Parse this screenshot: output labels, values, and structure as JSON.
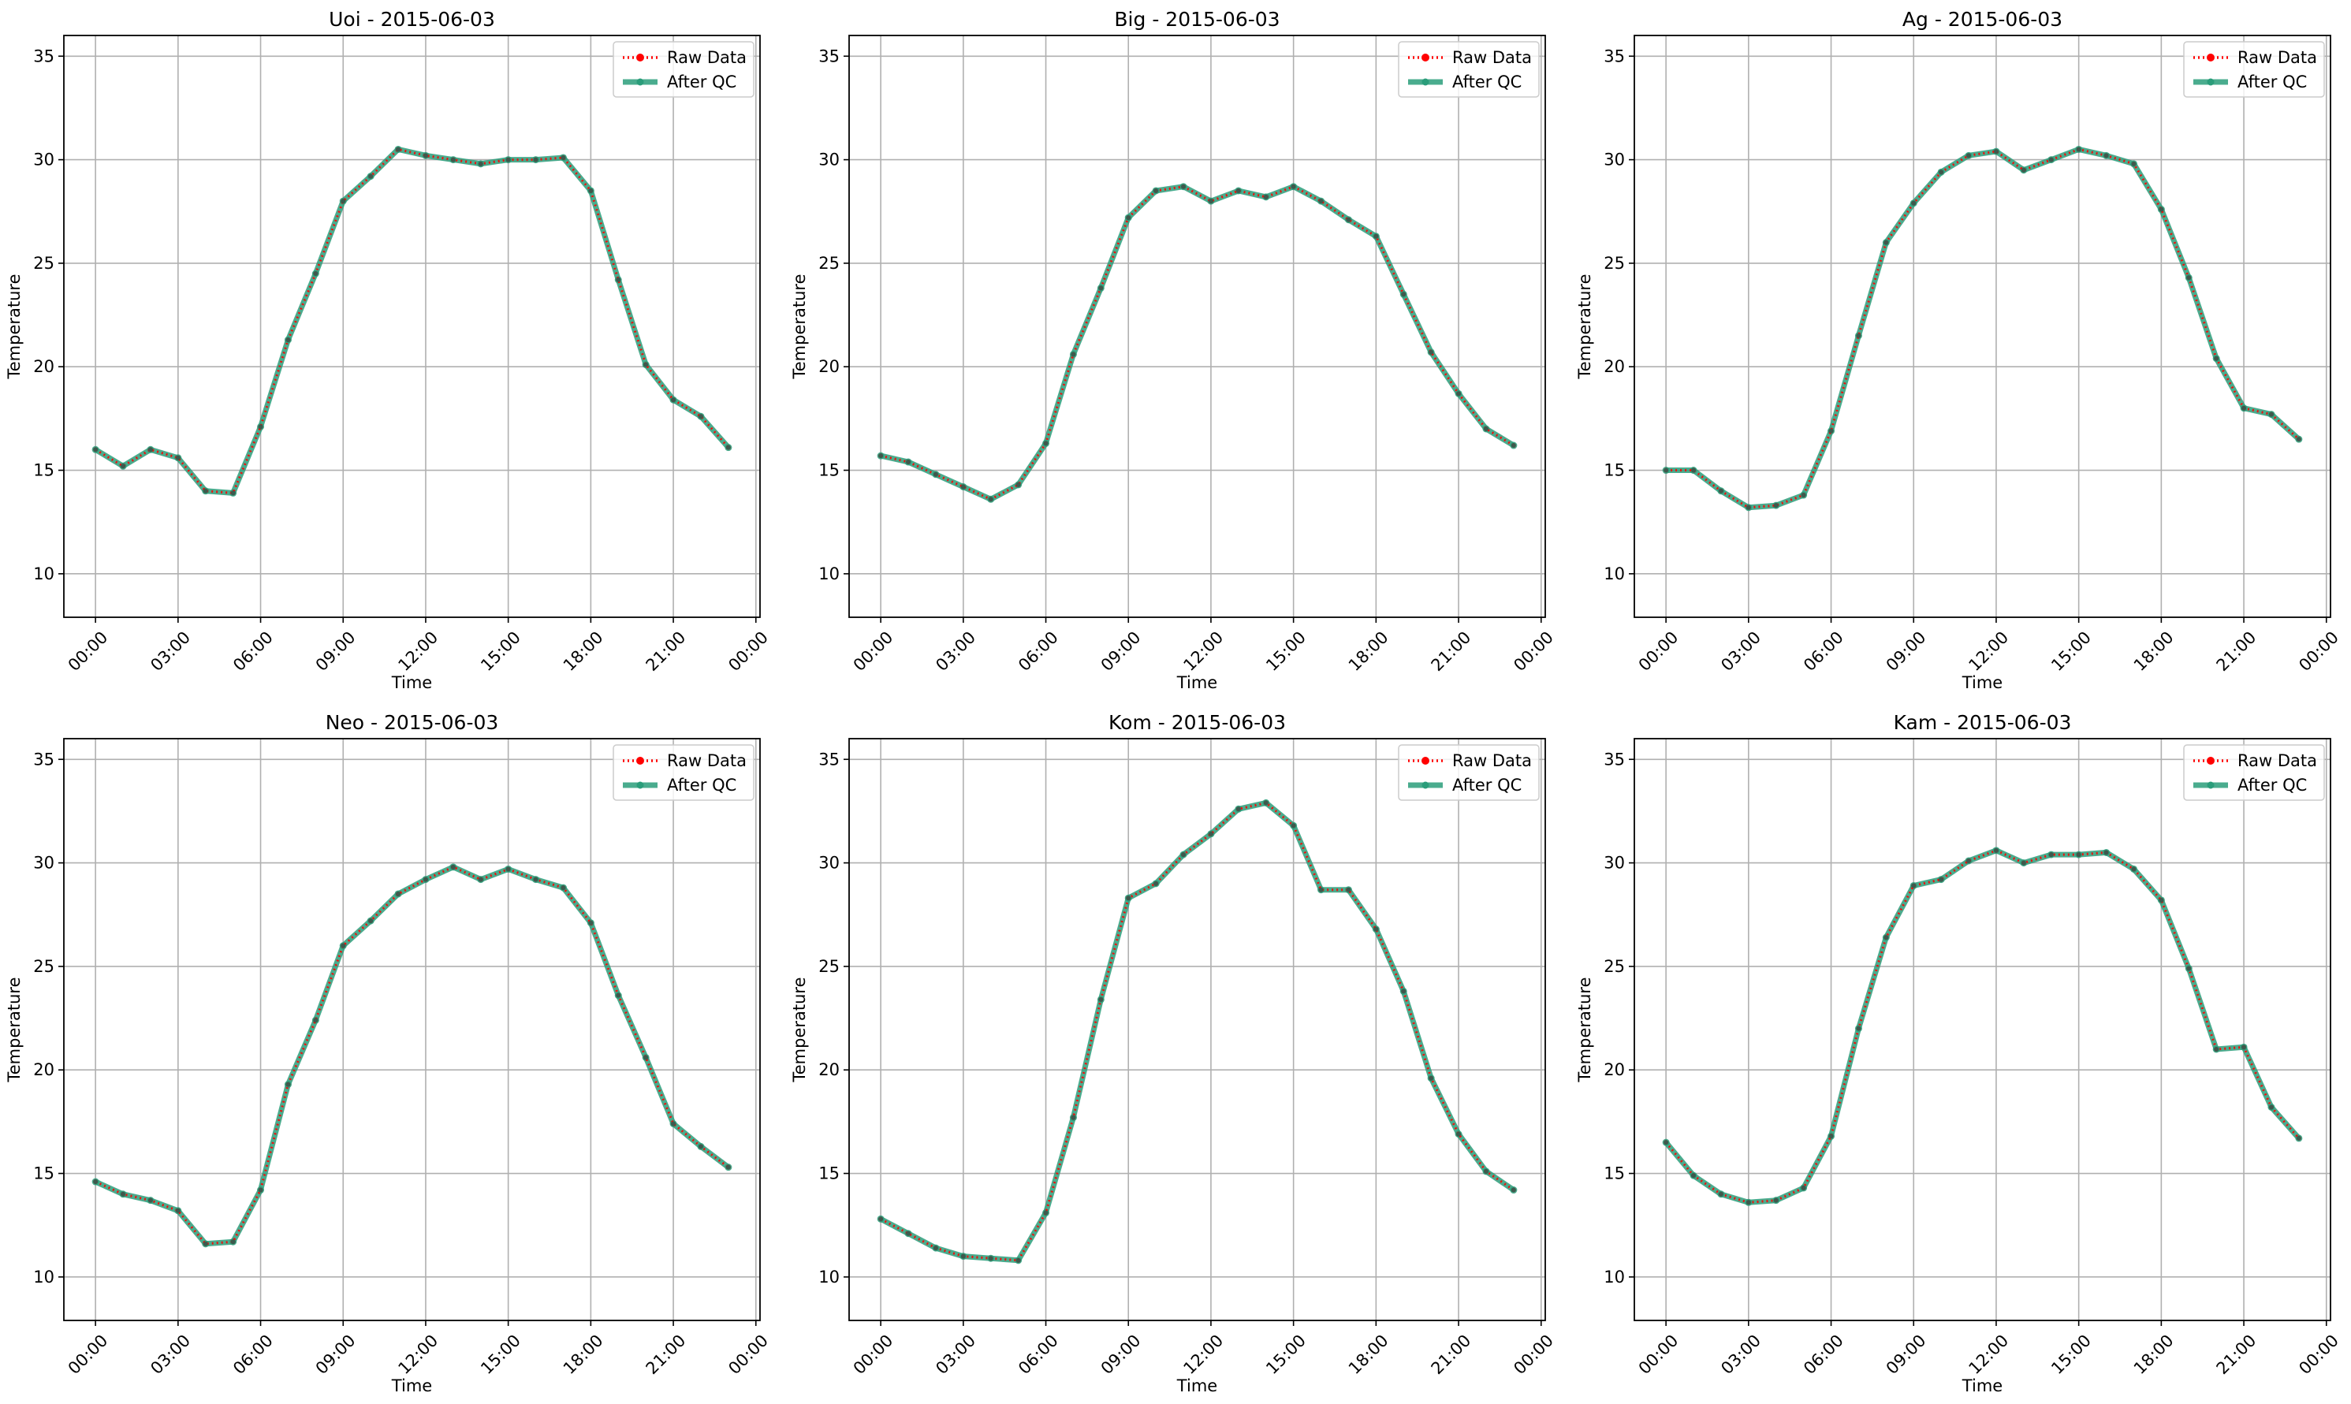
{
  "chart_data": [
    {
      "type": "line",
      "title": "Uoi - 2015-06-03",
      "xlabel": "Time",
      "ylabel": "Temperature",
      "xticks": [
        "00:00",
        "03:00",
        "06:00",
        "09:00",
        "12:00",
        "15:00",
        "18:00",
        "21:00",
        "00:00"
      ],
      "yticks": [
        10,
        15,
        20,
        25,
        30,
        35
      ],
      "ylim": [
        7.9,
        36.0
      ],
      "xlim_hours": [
        -1.15,
        24.15
      ],
      "grid": true,
      "legend_position": "top-right",
      "x_hours": [
        0,
        1,
        2,
        3,
        4,
        5,
        6,
        7,
        8,
        9,
        10,
        11,
        12,
        13,
        14,
        15,
        16,
        17,
        18,
        19,
        20,
        21,
        22,
        23
      ],
      "series": [
        {
          "name": "Raw Data",
          "color": "#ff0000",
          "style": "dotted",
          "marker": "o",
          "values": [
            16.0,
            15.2,
            16.0,
            15.6,
            14.0,
            13.9,
            17.1,
            21.3,
            24.5,
            28.0,
            29.2,
            30.5,
            30.2,
            30.0,
            29.8,
            30.0,
            30.0,
            30.1,
            28.5,
            24.2,
            20.1,
            18.4,
            17.6,
            16.1
          ]
        },
        {
          "name": "After QC",
          "color": "#2a9d7a",
          "style": "solid",
          "marker": "o",
          "values": [
            16.0,
            15.2,
            16.0,
            15.6,
            14.0,
            13.9,
            17.1,
            21.3,
            24.5,
            28.0,
            29.2,
            30.5,
            30.2,
            30.0,
            29.8,
            30.0,
            30.0,
            30.1,
            28.5,
            24.2,
            20.1,
            18.4,
            17.6,
            16.1
          ]
        }
      ]
    },
    {
      "type": "line",
      "title": "Big - 2015-06-03",
      "xlabel": "Time",
      "ylabel": "Temperature",
      "xticks": [
        "00:00",
        "03:00",
        "06:00",
        "09:00",
        "12:00",
        "15:00",
        "18:00",
        "21:00",
        "00:00"
      ],
      "yticks": [
        10,
        15,
        20,
        25,
        30,
        35
      ],
      "ylim": [
        7.9,
        36.0
      ],
      "xlim_hours": [
        -1.15,
        24.15
      ],
      "grid": true,
      "legend_position": "top-right",
      "x_hours": [
        0,
        1,
        2,
        3,
        4,
        5,
        6,
        7,
        8,
        9,
        10,
        11,
        12,
        13,
        14,
        15,
        16,
        17,
        18,
        19,
        20,
        21,
        22,
        23
      ],
      "series": [
        {
          "name": "Raw Data",
          "color": "#ff0000",
          "style": "dotted",
          "marker": "o",
          "values": [
            15.7,
            15.4,
            14.8,
            14.2,
            13.6,
            14.3,
            16.3,
            20.6,
            23.8,
            27.2,
            28.5,
            28.7,
            28.0,
            28.5,
            28.2,
            28.7,
            28.0,
            27.1,
            26.3,
            23.5,
            20.7,
            18.7,
            17.0,
            16.2
          ]
        },
        {
          "name": "After QC",
          "color": "#2a9d7a",
          "style": "solid",
          "marker": "o",
          "values": [
            15.7,
            15.4,
            14.8,
            14.2,
            13.6,
            14.3,
            16.3,
            20.6,
            23.8,
            27.2,
            28.5,
            28.7,
            28.0,
            28.5,
            28.2,
            28.7,
            28.0,
            27.1,
            26.3,
            23.5,
            20.7,
            18.7,
            17.0,
            16.2
          ]
        }
      ]
    },
    {
      "type": "line",
      "title": "Ag - 2015-06-03",
      "xlabel": "Time",
      "ylabel": "Temperature",
      "xticks": [
        "00:00",
        "03:00",
        "06:00",
        "09:00",
        "12:00",
        "15:00",
        "18:00",
        "21:00",
        "00:00"
      ],
      "yticks": [
        10,
        15,
        20,
        25,
        30,
        35
      ],
      "ylim": [
        7.9,
        36.0
      ],
      "xlim_hours": [
        -1.15,
        24.15
      ],
      "grid": true,
      "legend_position": "top-right",
      "x_hours": [
        0,
        1,
        2,
        3,
        4,
        5,
        6,
        7,
        8,
        9,
        10,
        11,
        12,
        13,
        14,
        15,
        16,
        17,
        18,
        19,
        20,
        21,
        22,
        23
      ],
      "series": [
        {
          "name": "Raw Data",
          "color": "#ff0000",
          "style": "dotted",
          "marker": "o",
          "values": [
            15.0,
            15.0,
            14.0,
            13.2,
            13.3,
            13.8,
            16.9,
            21.5,
            26.0,
            27.9,
            29.4,
            30.2,
            30.4,
            29.5,
            30.0,
            30.5,
            30.2,
            29.8,
            27.6,
            24.3,
            20.4,
            18.0,
            17.7,
            16.5
          ]
        },
        {
          "name": "After QC",
          "color": "#2a9d7a",
          "style": "solid",
          "marker": "o",
          "values": [
            15.0,
            15.0,
            14.0,
            13.2,
            13.3,
            13.8,
            16.9,
            21.5,
            26.0,
            27.9,
            29.4,
            30.2,
            30.4,
            29.5,
            30.0,
            30.5,
            30.2,
            29.8,
            27.6,
            24.3,
            20.4,
            18.0,
            17.7,
            16.5
          ]
        }
      ]
    },
    {
      "type": "line",
      "title": "Neo - 2015-06-03",
      "xlabel": "Time",
      "ylabel": "Temperature",
      "xticks": [
        "00:00",
        "03:00",
        "06:00",
        "09:00",
        "12:00",
        "15:00",
        "18:00",
        "21:00",
        "00:00"
      ],
      "yticks": [
        10,
        15,
        20,
        25,
        30,
        35
      ],
      "ylim": [
        7.9,
        36.0
      ],
      "xlim_hours": [
        -1.15,
        24.15
      ],
      "grid": true,
      "legend_position": "top-right",
      "x_hours": [
        0,
        1,
        2,
        3,
        4,
        5,
        6,
        7,
        8,
        9,
        10,
        11,
        12,
        13,
        14,
        15,
        16,
        17,
        18,
        19,
        20,
        21,
        22,
        23
      ],
      "series": [
        {
          "name": "Raw Data",
          "color": "#ff0000",
          "style": "dotted",
          "marker": "o",
          "values": [
            14.6,
            14.0,
            13.7,
            13.2,
            11.6,
            11.7,
            14.2,
            19.3,
            22.4,
            26.0,
            27.2,
            28.5,
            29.2,
            29.8,
            29.2,
            29.7,
            29.2,
            28.8,
            27.1,
            23.6,
            20.6,
            17.4,
            16.3,
            15.3
          ]
        },
        {
          "name": "After QC",
          "color": "#2a9d7a",
          "style": "solid",
          "marker": "o",
          "values": [
            14.6,
            14.0,
            13.7,
            13.2,
            11.6,
            11.7,
            14.2,
            19.3,
            22.4,
            26.0,
            27.2,
            28.5,
            29.2,
            29.8,
            29.2,
            29.7,
            29.2,
            28.8,
            27.1,
            23.6,
            20.6,
            17.4,
            16.3,
            15.3
          ]
        }
      ]
    },
    {
      "type": "line",
      "title": "Kom - 2015-06-03",
      "xlabel": "Time",
      "ylabel": "Temperature",
      "xticks": [
        "00:00",
        "03:00",
        "06:00",
        "09:00",
        "12:00",
        "15:00",
        "18:00",
        "21:00",
        "00:00"
      ],
      "yticks": [
        10,
        15,
        20,
        25,
        30,
        35
      ],
      "ylim": [
        7.9,
        36.0
      ],
      "xlim_hours": [
        -1.15,
        24.15
      ],
      "grid": true,
      "legend_position": "top-right",
      "x_hours": [
        0,
        1,
        2,
        3,
        4,
        5,
        6,
        7,
        8,
        9,
        10,
        11,
        12,
        13,
        14,
        15,
        16,
        17,
        18,
        19,
        20,
        21,
        22,
        23
      ],
      "series": [
        {
          "name": "Raw Data",
          "color": "#ff0000",
          "style": "dotted",
          "marker": "o",
          "values": [
            12.8,
            12.1,
            11.4,
            11.0,
            10.9,
            10.8,
            13.1,
            17.7,
            23.4,
            28.3,
            29.0,
            30.4,
            31.4,
            32.6,
            32.9,
            31.8,
            28.7,
            28.7,
            26.8,
            23.8,
            19.6,
            16.9,
            15.1,
            14.2
          ]
        },
        {
          "name": "After QC",
          "color": "#2a9d7a",
          "style": "solid",
          "marker": "o",
          "values": [
            12.8,
            12.1,
            11.4,
            11.0,
            10.9,
            10.8,
            13.1,
            17.7,
            23.4,
            28.3,
            29.0,
            30.4,
            31.4,
            32.6,
            32.9,
            31.8,
            28.7,
            28.7,
            26.8,
            23.8,
            19.6,
            16.9,
            15.1,
            14.2
          ]
        }
      ]
    },
    {
      "type": "line",
      "title": "Kam - 2015-06-03",
      "xlabel": "Time",
      "ylabel": "Temperature",
      "xticks": [
        "00:00",
        "03:00",
        "06:00",
        "09:00",
        "12:00",
        "15:00",
        "18:00",
        "21:00",
        "00:00"
      ],
      "yticks": [
        10,
        15,
        20,
        25,
        30,
        35
      ],
      "ylim": [
        7.9,
        36.0
      ],
      "xlim_hours": [
        -1.15,
        24.15
      ],
      "grid": true,
      "legend_position": "top-right",
      "x_hours": [
        0,
        1,
        2,
        3,
        4,
        5,
        6,
        7,
        8,
        9,
        10,
        11,
        12,
        13,
        14,
        15,
        16,
        17,
        18,
        19,
        20,
        21,
        22,
        23
      ],
      "series": [
        {
          "name": "Raw Data",
          "color": "#ff0000",
          "style": "dotted",
          "marker": "o",
          "values": [
            16.5,
            14.9,
            14.0,
            13.6,
            13.7,
            14.3,
            16.8,
            22.0,
            26.4,
            28.9,
            29.2,
            30.1,
            30.6,
            30.0,
            30.4,
            30.4,
            30.5,
            29.7,
            28.2,
            24.9,
            21.0,
            21.1,
            18.2,
            16.7
          ]
        },
        {
          "name": "After QC",
          "color": "#2a9d7a",
          "style": "solid",
          "marker": "o",
          "values": [
            16.5,
            14.9,
            14.0,
            13.6,
            13.7,
            14.3,
            16.8,
            22.0,
            26.4,
            28.9,
            29.2,
            30.1,
            30.6,
            30.0,
            30.4,
            30.4,
            30.5,
            29.7,
            28.2,
            24.9,
            21.0,
            21.1,
            18.2,
            16.7
          ]
        }
      ]
    }
  ]
}
